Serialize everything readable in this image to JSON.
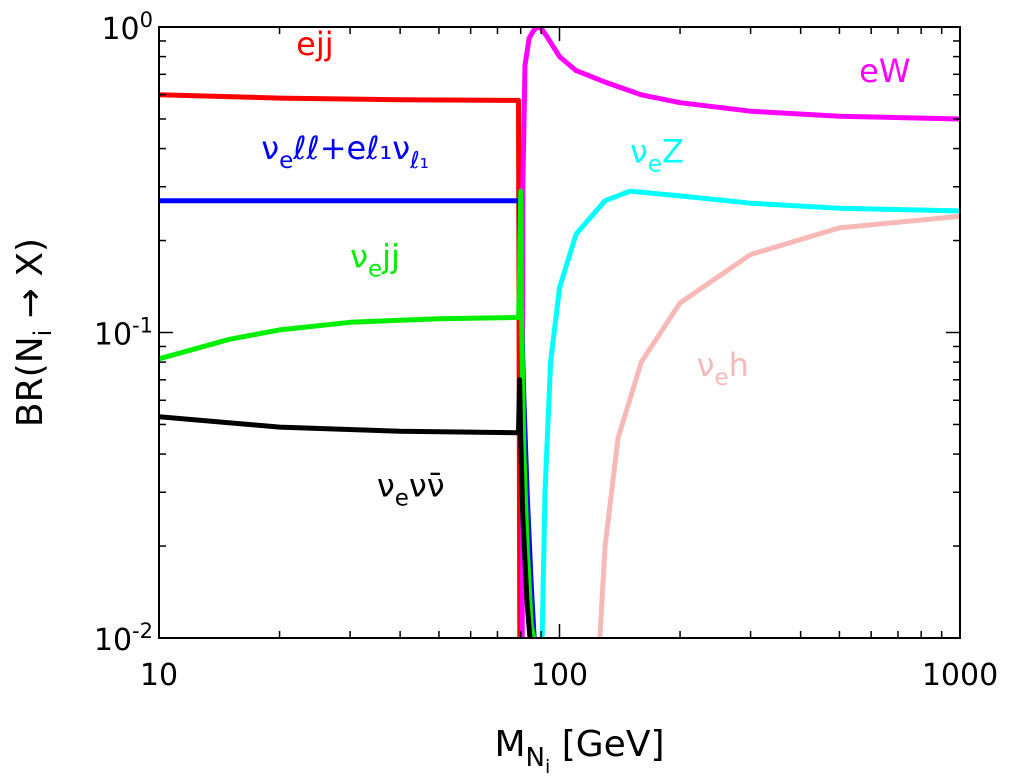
{
  "chart_data": {
    "type": "line",
    "x_scale": "log",
    "y_scale": "log",
    "xlim": [
      10,
      1000
    ],
    "ylim": [
      0.01,
      1
    ],
    "xlabel": "M_{N_i} [GeV]",
    "ylabel": "BR(N_i → X)",
    "x_ticks": [
      {
        "value": 10,
        "label": "10"
      },
      {
        "value": 100,
        "label": "100"
      },
      {
        "value": 1000,
        "label": "1000"
      }
    ],
    "y_ticks": [
      {
        "value": 1,
        "base": "10",
        "exp": "0"
      },
      {
        "value": 0.1,
        "base": "10",
        "exp": "-1"
      },
      {
        "value": 0.01,
        "base": "10",
        "exp": "-2"
      }
    ],
    "grid": false,
    "series": [
      {
        "name": "ejj",
        "color": "#ff0000",
        "points": [
          [
            10,
            0.6
          ],
          [
            20,
            0.585
          ],
          [
            40,
            0.578
          ],
          [
            79,
            0.575
          ],
          [
            79.6,
            0.0098
          ]
        ]
      },
      {
        "name": "eW",
        "color": "#ff00ff",
        "points": [
          [
            80.7,
            0.0098
          ],
          [
            81,
            0.3
          ],
          [
            82,
            0.75
          ],
          [
            84,
            0.92
          ],
          [
            86,
            0.97
          ],
          [
            88,
            1.0
          ],
          [
            90,
            0.99
          ],
          [
            93,
            0.93
          ],
          [
            100,
            0.8
          ],
          [
            110,
            0.72
          ],
          [
            130,
            0.66
          ],
          [
            160,
            0.6
          ],
          [
            200,
            0.565
          ],
          [
            300,
            0.53
          ],
          [
            500,
            0.51
          ],
          [
            1000,
            0.5
          ]
        ]
      },
      {
        "name": "ν_e ℓℓ + e ℓ_1 ν_{ℓ_1}",
        "color": "#0000ff",
        "points": [
          [
            10,
            0.27
          ],
          [
            20,
            0.27
          ],
          [
            40,
            0.27
          ],
          [
            79.5,
            0.27
          ],
          [
            80,
            0.14
          ],
          [
            81.5,
            0.06
          ],
          [
            83,
            0.03
          ],
          [
            85,
            0.015
          ],
          [
            86.5,
            0.0098
          ]
        ]
      },
      {
        "name": "ν_e Z",
        "color": "#00ffff",
        "points": [
          [
            90.5,
            0.0098
          ],
          [
            92,
            0.03
          ],
          [
            95,
            0.08
          ],
          [
            100,
            0.14
          ],
          [
            110,
            0.21
          ],
          [
            130,
            0.27
          ],
          [
            150,
            0.29
          ],
          [
            200,
            0.28
          ],
          [
            300,
            0.265
          ],
          [
            500,
            0.255
          ],
          [
            1000,
            0.25
          ]
        ]
      },
      {
        "name": "ν_e jj",
        "color": "#00ee00",
        "points": [
          [
            10,
            0.082
          ],
          [
            15,
            0.095
          ],
          [
            20,
            0.102
          ],
          [
            30,
            0.108
          ],
          [
            50,
            0.111
          ],
          [
            79,
            0.112
          ],
          [
            79.3,
            0.13
          ],
          [
            80,
            0.29
          ],
          [
            80.3,
            0.13
          ],
          [
            81.5,
            0.04
          ],
          [
            83,
            0.02
          ],
          [
            85,
            0.011
          ],
          [
            86.5,
            0.0098
          ]
        ]
      },
      {
        "name": "ν_e h",
        "color": "#f7b8b8",
        "points": [
          [
            126,
            0.0098
          ],
          [
            130,
            0.02
          ],
          [
            140,
            0.045
          ],
          [
            160,
            0.08
          ],
          [
            200,
            0.125
          ],
          [
            300,
            0.18
          ],
          [
            500,
            0.22
          ],
          [
            1000,
            0.24
          ]
        ]
      },
      {
        "name": "ν_e ν ν̄",
        "color": "#000000",
        "points": [
          [
            10,
            0.053
          ],
          [
            20,
            0.049
          ],
          [
            40,
            0.0475
          ],
          [
            79,
            0.047
          ],
          [
            79.5,
            0.07
          ],
          [
            80,
            0.045
          ],
          [
            81,
            0.025
          ],
          [
            83,
            0.013
          ],
          [
            84.5,
            0.0098
          ]
        ]
      }
    ],
    "annotations": [
      {
        "series": "ejj",
        "color": "#ff0000",
        "main": "ejj",
        "sub": "",
        "rest": "",
        "x": 22,
        "y": 0.81
      },
      {
        "series": "eW",
        "color": "#ff00ff",
        "main": "eW",
        "sub": "",
        "rest": "",
        "x": 560,
        "y": 0.66
      },
      {
        "series": "ν_e ℓℓ + e ℓ_1 ν_{ℓ_1}",
        "color": "#0000ff",
        "main": "ν",
        "sub": "e",
        "rest": "ℓℓ+eℓ₁ν",
        "sub2": "ℓ₁",
        "x": 18,
        "y": 0.37
      },
      {
        "series": "ν_e Z",
        "color": "#00ffff",
        "main": "ν",
        "sub": "e",
        "rest": "Z",
        "x": 150,
        "y": 0.36
      },
      {
        "series": "ν_e jj",
        "color": "#00ee00",
        "main": "ν",
        "sub": "e",
        "rest": "jj",
        "x": 30,
        "y": 0.163
      },
      {
        "series": "ν_e h",
        "color": "#f7b8b8",
        "main": "ν",
        "sub": "e",
        "rest": "h",
        "x": 220,
        "y": 0.072
      },
      {
        "series": "ν_e ν ν̄",
        "color": "#000000",
        "main": "ν",
        "sub": "e",
        "rest": "νν̄",
        "x": 35,
        "y": 0.029
      }
    ]
  }
}
